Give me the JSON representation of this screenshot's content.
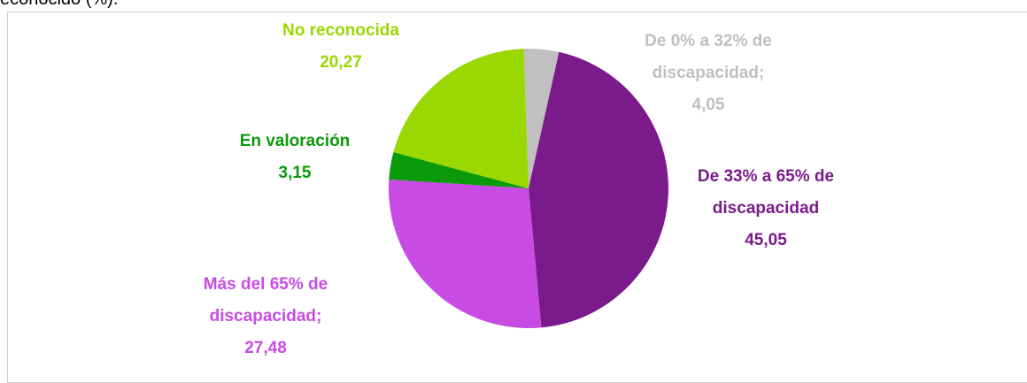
{
  "caption": "econocido (%).",
  "chart_data": {
    "type": "pie",
    "categories": [
      "De 0% a 32% de discapacidad;",
      "De 33% a 65% de discapacidad",
      "Más del 65% de discapacidad;",
      "En valoración",
      "No reconocida"
    ],
    "values": [
      4.05,
      45.05,
      27.48,
      3.15,
      20.27
    ],
    "value_labels": [
      "4,05",
      "45,05",
      "27,48",
      "3,15",
      "20,27"
    ],
    "colors": [
      "#c0c0c0",
      "#7b1a8a",
      "#c84ce4",
      "#0a9a0a",
      "#99d800"
    ]
  }
}
